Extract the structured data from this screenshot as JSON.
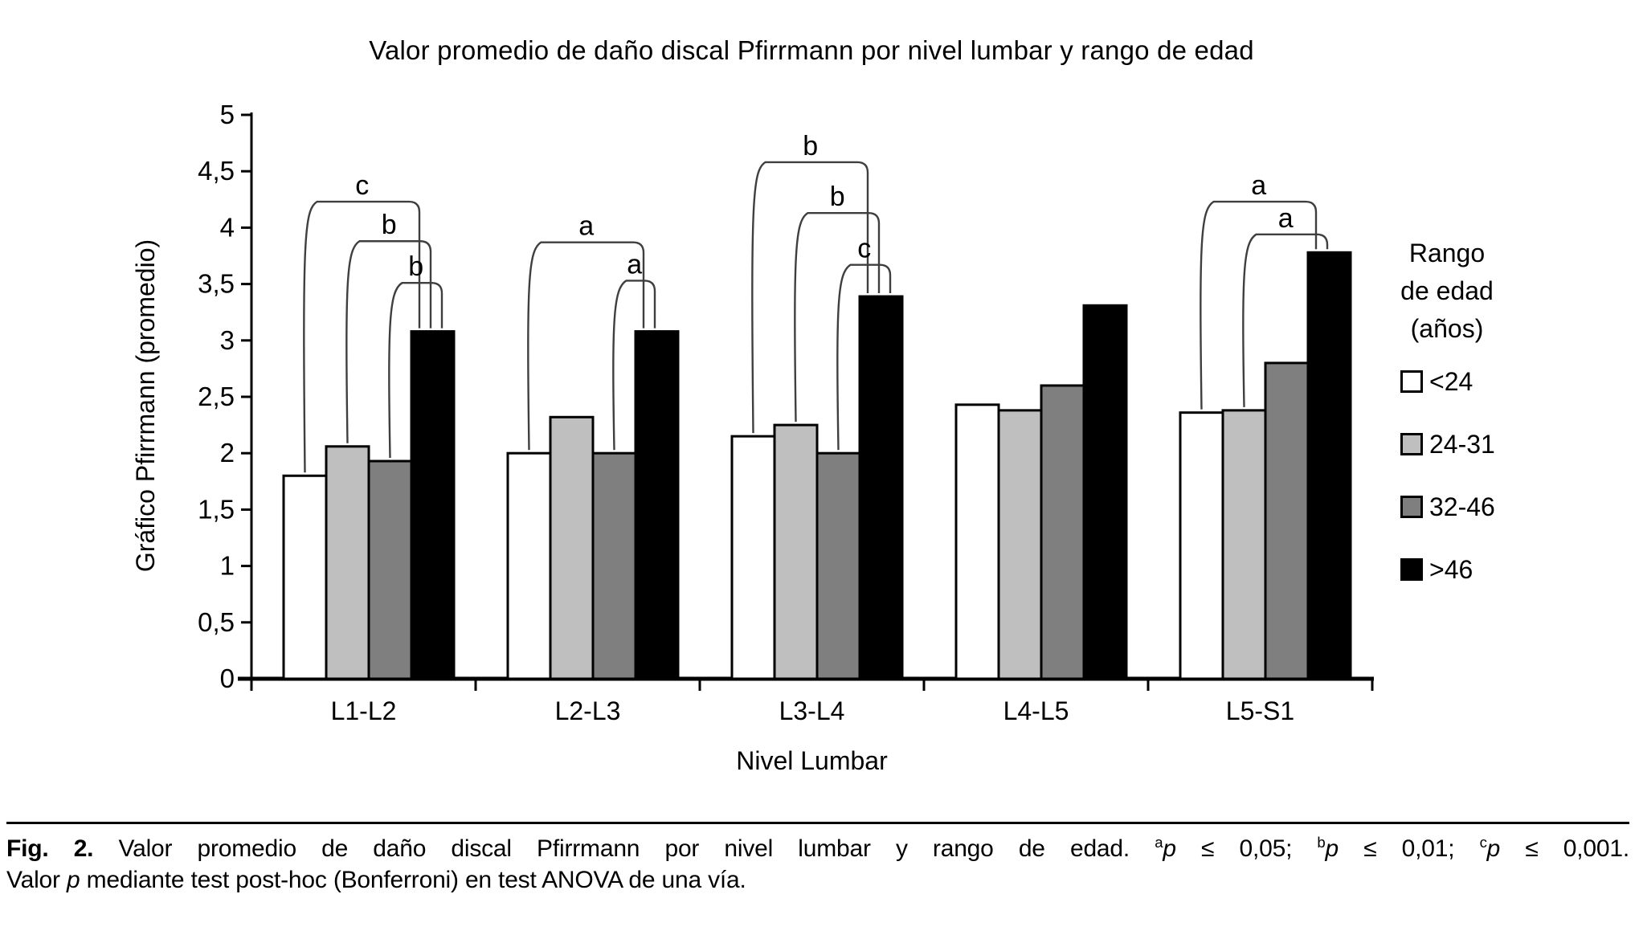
{
  "title": "Valor promedio de daño discal Pfirrmann por nivel lumbar y rango de edad",
  "chart_data": {
    "type": "bar",
    "title": "Valor promedio de daño discal Pfirrmann por nivel lumbar y rango de edad",
    "xlabel": "Nivel Lumbar",
    "ylabel": "Gráfico Pfirrmann (promedio)",
    "ylim": [
      0,
      5
    ],
    "ytick_step": 0.5,
    "ytick_labels": [
      "0",
      "0,5",
      "1",
      "1,5",
      "2",
      "2,5",
      "3",
      "3,5",
      "4",
      "4,5",
      "5"
    ],
    "grid": false,
    "legend_position": "right",
    "legend_title": "Rango de edad (años)",
    "legend_title_lines": [
      "Rango",
      "de edad",
      "(años)"
    ],
    "categories": [
      "L1-L2",
      "L2-L3",
      "L3-L4",
      "L4-L5",
      "L5-S1"
    ],
    "series": [
      {
        "name": "<24",
        "color": "#ffffff",
        "values": [
          1.8,
          2.0,
          2.15,
          2.43,
          2.36
        ]
      },
      {
        "name": "24-31",
        "color": "#bfbfbf",
        "values": [
          2.06,
          2.32,
          2.25,
          2.38,
          2.38
        ]
      },
      {
        "name": "32-46",
        "color": "#7f7f7f",
        "values": [
          1.93,
          2.0,
          2.0,
          2.6,
          2.8
        ]
      },
      {
        "name": ">46",
        "color": "#000000",
        "values": [
          3.08,
          3.08,
          3.39,
          3.31,
          3.78
        ]
      }
    ],
    "significance_brackets": [
      {
        "category": "L1-L2",
        "from_series": "<24",
        "to_series": ">46",
        "label": "c",
        "height": 4.23
      },
      {
        "category": "L1-L2",
        "from_series": "24-31",
        "to_series": ">46",
        "label": "b",
        "height": 3.88
      },
      {
        "category": "L1-L2",
        "from_series": "32-46",
        "to_series": ">46",
        "label": "b",
        "height": 3.51
      },
      {
        "category": "L2-L3",
        "from_series": "<24",
        "to_series": ">46",
        "label": "a",
        "height": 3.87
      },
      {
        "category": "L2-L3",
        "from_series": "32-46",
        "to_series": ">46",
        "label": "a",
        "height": 3.53
      },
      {
        "category": "L3-L4",
        "from_series": "<24",
        "to_series": ">46",
        "label": "b",
        "height": 4.58
      },
      {
        "category": "L3-L4",
        "from_series": "24-31",
        "to_series": ">46",
        "label": "b",
        "height": 4.13
      },
      {
        "category": "L3-L4",
        "from_series": "32-46",
        "to_series": ">46",
        "label": "c",
        "height": 3.67
      },
      {
        "category": "L5-S1",
        "from_series": "<24",
        "to_series": ">46",
        "label": "a",
        "height": 4.23
      },
      {
        "category": "L5-S1",
        "from_series": "24-31",
        "to_series": ">46",
        "label": "a",
        "height": 3.94
      }
    ]
  },
  "caption": {
    "fig_label": "Fig. 2.",
    "body": " Valor promedio de daño discal Pfirrmann por nivel lumbar y rango de edad. ",
    "sig": [
      {
        "sup": "a",
        "p": "p",
        "rest": " ≤ 0,05; "
      },
      {
        "sup": "b",
        "p": "p",
        "rest": " ≤ 0,01; "
      },
      {
        "sup": "c",
        "p": "p",
        "rest": " ≤ 0,001."
      }
    ],
    "line2": {
      "pre": "Valor ",
      "p": "p",
      "post": " mediante test post-hoc (Bonferroni) en test ANOVA de una vía."
    }
  }
}
